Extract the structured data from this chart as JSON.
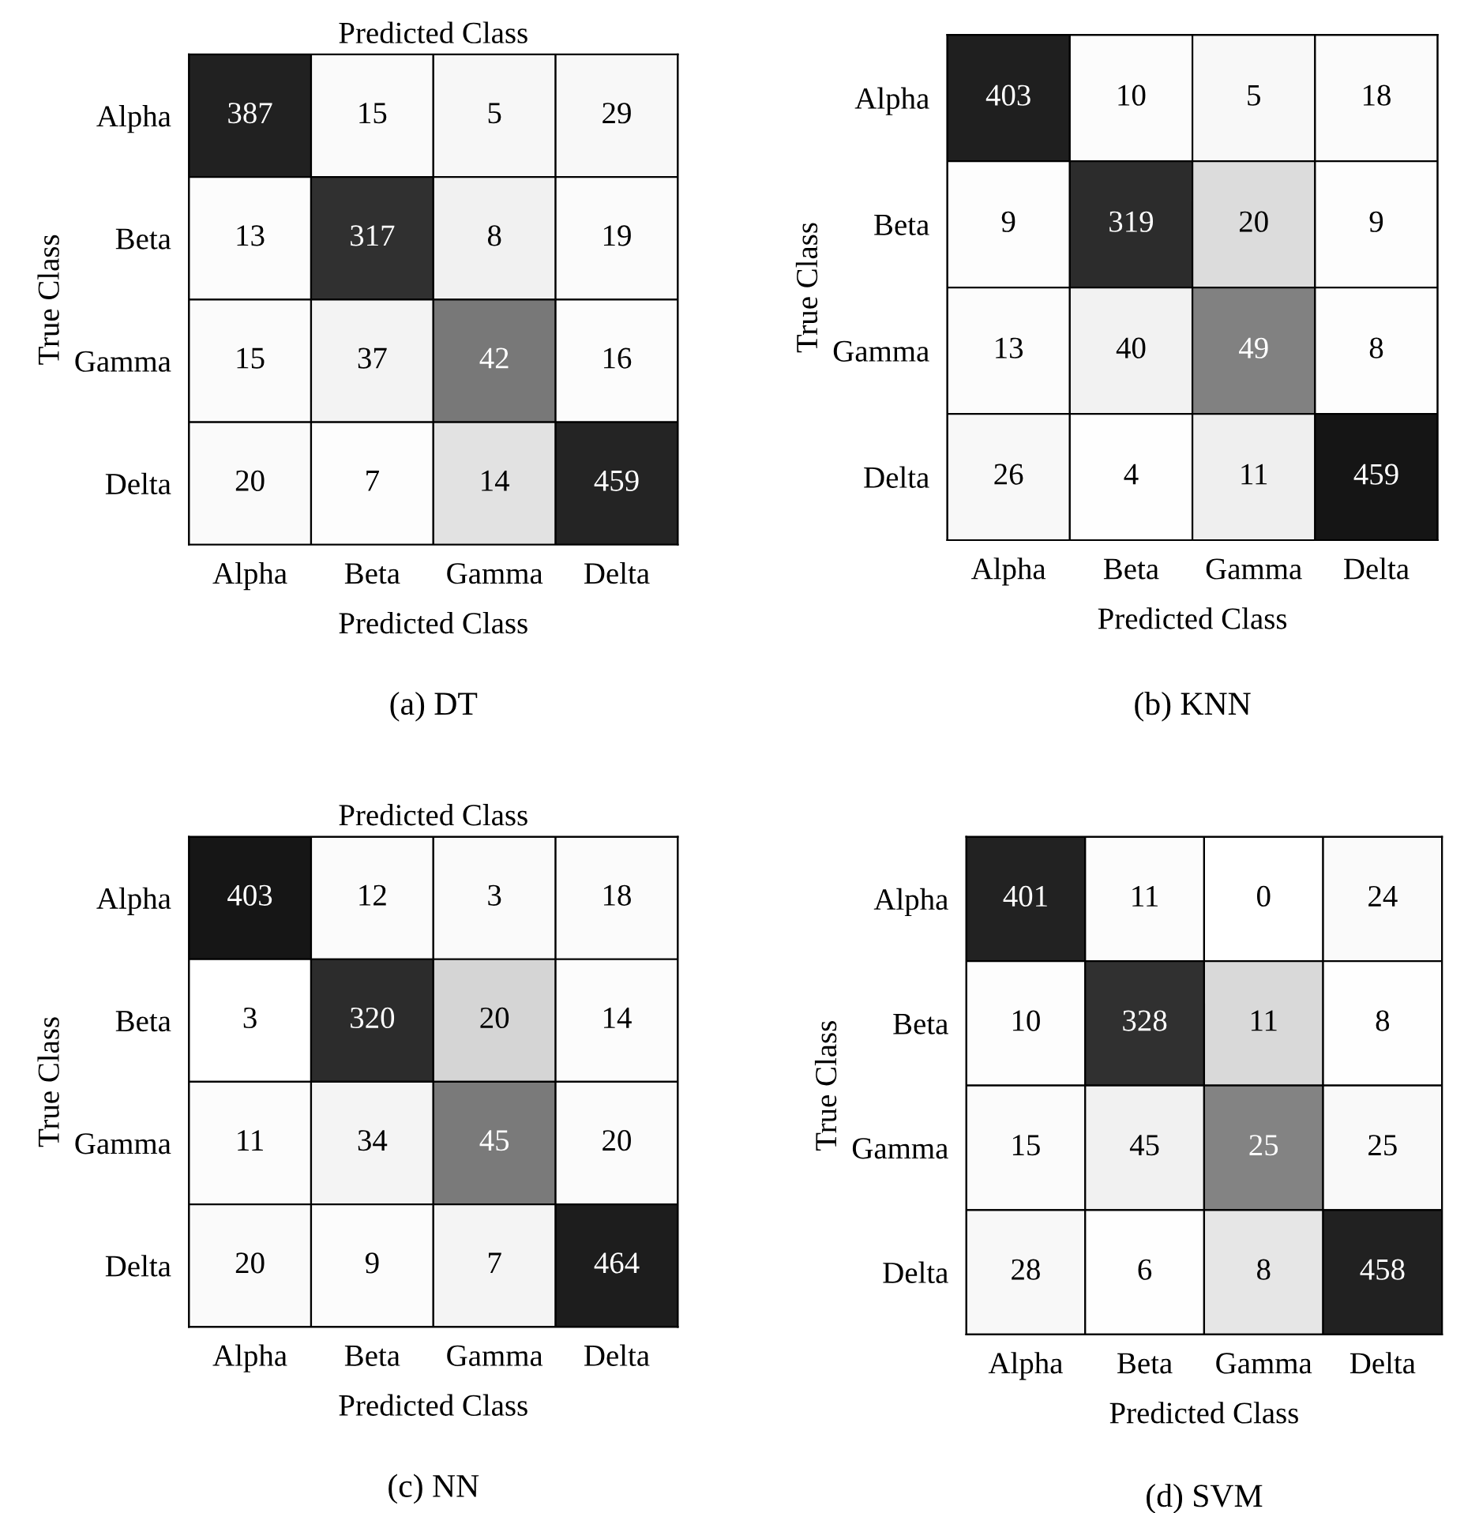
{
  "chart_data": [
    {
      "type": "heatmap",
      "categories": [
        "Alpha",
        "Beta",
        "Gamma",
        "Delta"
      ],
      "y_categories": [
        "Alpha",
        "Beta",
        "Gamma",
        "Delta"
      ],
      "cells": [
        [
          387,
          15,
          5,
          29
        ],
        [
          13,
          317,
          8,
          19
        ],
        [
          15,
          37,
          42,
          16
        ],
        [
          20,
          7,
          14,
          459
        ]
      ],
      "xlabel": "Predicted Class",
      "x2label": "Predicted Class",
      "ylabel": "True Class",
      "annotations": [
        "(a) DT"
      ],
      "data_labels": true
    },
    {
      "type": "heatmap",
      "categories": [
        "Alpha",
        "Beta",
        "Gamma",
        "Delta"
      ],
      "y_categories": [
        "Alpha",
        "Beta",
        "Gamma",
        "Delta"
      ],
      "cells": [
        [
          403,
          10,
          5,
          18
        ],
        [
          9,
          319,
          20,
          9
        ],
        [
          13,
          40,
          49,
          8
        ],
        [
          26,
          4,
          11,
          459
        ]
      ],
      "xlabel": "Predicted Class",
      "ylabel": "True Class",
      "annotations": [
        "(b) KNN"
      ],
      "data_labels": true
    },
    {
      "type": "heatmap",
      "categories": [
        "Alpha",
        "Beta",
        "Gamma",
        "Delta"
      ],
      "y_categories": [
        "Alpha",
        "Beta",
        "Gamma",
        "Delta"
      ],
      "cells": [
        [
          403,
          12,
          3,
          18
        ],
        [
          3,
          320,
          20,
          14
        ],
        [
          11,
          34,
          45,
          20
        ],
        [
          20,
          9,
          7,
          464
        ]
      ],
      "xlabel": "Predicted Class",
      "x2label": "Predicted Class",
      "ylabel": "True Class",
      "annotations": [
        "(c) NN"
      ],
      "data_labels": true
    },
    {
      "type": "heatmap",
      "categories": [
        "Alpha",
        "Beta",
        "Gamma",
        "Delta"
      ],
      "y_categories": [
        "Alpha",
        "Beta",
        "Gamma",
        "Delta"
      ],
      "cells": [
        [
          401,
          11,
          0,
          24
        ],
        [
          10,
          328,
          11,
          8
        ],
        [
          15,
          45,
          25,
          25
        ],
        [
          28,
          6,
          8,
          458
        ]
      ],
      "xlabel": "Predicted Class",
      "ylabel": "True Class",
      "annotations": [
        "(d) SVM"
      ],
      "data_labels": true
    }
  ]
}
